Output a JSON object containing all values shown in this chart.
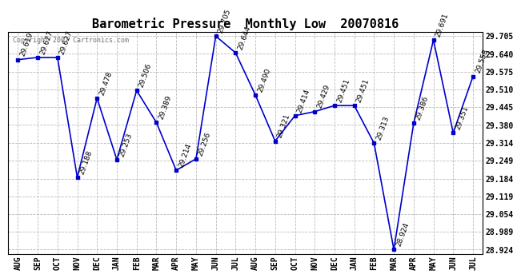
{
  "title": "Barometric Pressure  Monthly Low  20070816",
  "categories": [
    "AUG",
    "SEP",
    "OCT",
    "NOV",
    "DEC",
    "JAN",
    "FEB",
    "MAR",
    "APR",
    "MAY",
    "JUN",
    "JUL",
    "AUG",
    "SEP",
    "OCT",
    "NOV",
    "DEC",
    "JAN",
    "FEB",
    "MAR",
    "APR",
    "MAY",
    "JUN",
    "JUL"
  ],
  "values": [
    29.619,
    29.627,
    29.627,
    29.188,
    29.478,
    29.253,
    29.506,
    29.389,
    29.214,
    29.256,
    29.705,
    29.644,
    29.49,
    29.321,
    29.414,
    29.429,
    29.451,
    29.451,
    29.313,
    28.924,
    29.386,
    29.691,
    29.351,
    29.558
  ],
  "ylim_min": 28.924,
  "ylim_max": 29.705,
  "line_color": "#0000cc",
  "marker_color": "#0000cc",
  "bg_color": "#ffffff",
  "grid_color": "#bbbbbb",
  "text_color": "#000000",
  "watermark": "Copyright 2007 Cartronics.com",
  "yticks": [
    28.924,
    28.989,
    29.054,
    29.119,
    29.184,
    29.249,
    29.314,
    29.38,
    29.445,
    29.51,
    29.575,
    29.64,
    29.705
  ],
  "title_fontsize": 11,
  "label_fontsize": 6.5,
  "tick_fontsize": 7
}
